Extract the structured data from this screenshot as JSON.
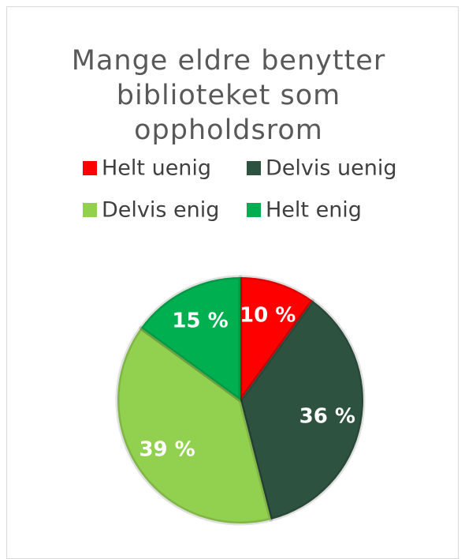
{
  "chart_data": {
    "type": "pie",
    "title": "Mange eldre benytter biblioteket som oppholdsrom",
    "categories": [
      "Helt uenig",
      "Delvis uenig",
      "Delvis enig",
      "Helt enig"
    ],
    "values": [
      10,
      36,
      39,
      15
    ],
    "value_labels": [
      "10 %",
      "36 %",
      "39 %",
      "15 %"
    ],
    "colors": [
      "#ff0000",
      "#2e5240",
      "#92d050",
      "#00b050"
    ]
  }
}
